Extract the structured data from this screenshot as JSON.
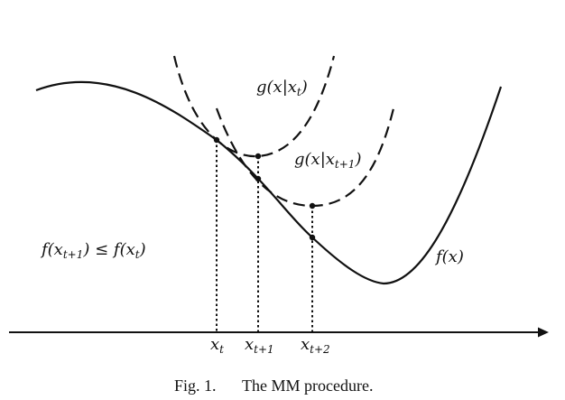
{
  "figure": {
    "caption_label": "Fig. 1.",
    "caption_text": "The MM procedure."
  },
  "labels": {
    "f_curve": "f(x)",
    "g_xt": "g(x|x",
    "g_xt_sub": "t",
    "g_xt_close": ")",
    "g_xt1": "g(x|x",
    "g_xt1_sub": "t+1",
    "g_xt1_close": ")",
    "inequality_part1": "f(x",
    "inequality_sub1": "t+1",
    "inequality_part2": ") ≤ f(x",
    "inequality_sub2": "t",
    "inequality_part3": ")"
  },
  "axis_ticks": [
    {
      "base": "x",
      "sub": "t"
    },
    {
      "base": "x",
      "sub": "t+1"
    },
    {
      "base": "x",
      "sub": "t+2"
    }
  ],
  "colors": {
    "ink": "#111111",
    "background": "#ffffff"
  }
}
